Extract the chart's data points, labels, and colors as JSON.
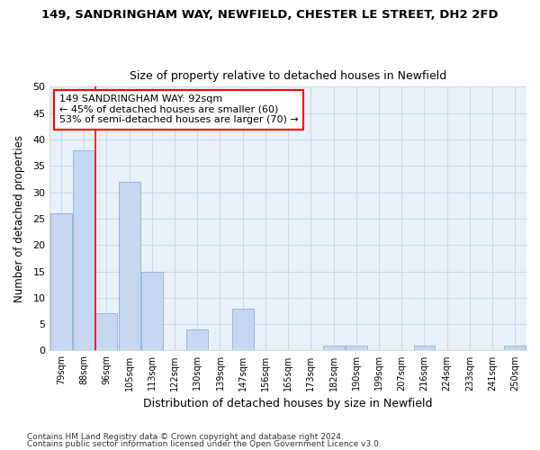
{
  "title": "149, SANDRINGHAM WAY, NEWFIELD, CHESTER LE STREET, DH2 2FD",
  "subtitle": "Size of property relative to detached houses in Newfield",
  "xlabel": "Distribution of detached houses by size in Newfield",
  "ylabel": "Number of detached properties",
  "bin_labels": [
    "79sqm",
    "88sqm",
    "96sqm",
    "105sqm",
    "113sqm",
    "122sqm",
    "130sqm",
    "139sqm",
    "147sqm",
    "156sqm",
    "165sqm",
    "173sqm",
    "182sqm",
    "190sqm",
    "199sqm",
    "207sqm",
    "216sqm",
    "224sqm",
    "233sqm",
    "241sqm",
    "250sqm"
  ],
  "values": [
    26,
    38,
    7,
    32,
    15,
    0,
    4,
    0,
    8,
    0,
    0,
    0,
    1,
    1,
    0,
    0,
    1,
    0,
    0,
    0,
    1
  ],
  "bar_color": "#c5d8f0",
  "bar_edge_color": "#8ab4d8",
  "red_line_x": 1.5,
  "annotation_line1": "149 SANDRINGHAM WAY: 92sqm",
  "annotation_line2": "← 45% of detached houses are smaller (60)",
  "annotation_line3": "53% of semi-detached houses are larger (70) →",
  "ylim": [
    0,
    50
  ],
  "yticks": [
    0,
    5,
    10,
    15,
    20,
    25,
    30,
    35,
    40,
    45,
    50
  ],
  "footer_line1": "Contains HM Land Registry data © Crown copyright and database right 2024.",
  "footer_line2": "Contains public sector information licensed under the Open Government Licence v3.0.",
  "background_color": "#ffffff",
  "plot_bg_color": "#e8f0f8",
  "grid_color": "#c8d8ec"
}
